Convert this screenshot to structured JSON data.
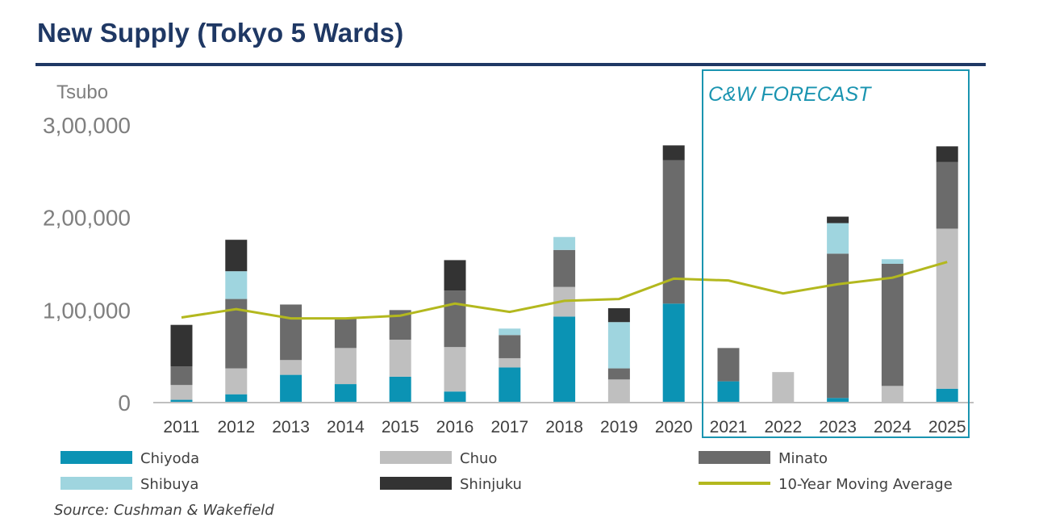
{
  "header": {
    "title": "New Supply (Tokyo 5 Wards)"
  },
  "source": "Source: Cushman & Wakefield",
  "chart_data": {
    "type": "bar",
    "stacked": true,
    "ylabel": "Tsubo",
    "ylim": [
      0,
      300000
    ],
    "yticks": [
      0,
      100000,
      200000,
      300000
    ],
    "ytick_labels": [
      "0",
      "1,00,000",
      "2,00,000",
      "3,00,000"
    ],
    "grid": false,
    "legend_position": "bottom",
    "categories": [
      "2011",
      "2012",
      "2013",
      "2014",
      "2015",
      "2016",
      "2017",
      "2018",
      "2019",
      "2020",
      "2021",
      "2022",
      "2023",
      "2024",
      "2025"
    ],
    "series": [
      {
        "name": "Chiyoda",
        "color": "#0b93b4",
        "values": [
          3000,
          9000,
          30000,
          20000,
          28000,
          12000,
          38000,
          93000,
          0,
          107000,
          23000,
          0,
          5000,
          0,
          15000
        ]
      },
      {
        "name": "Chuo",
        "color": "#bfbfbf",
        "values": [
          16000,
          28000,
          16000,
          39000,
          40000,
          48000,
          10000,
          32000,
          25000,
          0,
          0,
          33000,
          0,
          18000,
          173000
        ]
      },
      {
        "name": "Minato",
        "color": "#6b6b6b",
        "values": [
          20000,
          75000,
          60000,
          32000,
          32000,
          61000,
          25000,
          40000,
          12000,
          155000,
          36000,
          0,
          156000,
          132000,
          72000
        ]
      },
      {
        "name": "Shibuya",
        "color": "#9fd5df",
        "values": [
          0,
          30000,
          0,
          0,
          0,
          0,
          7000,
          14000,
          50000,
          0,
          0,
          0,
          33000,
          5000,
          0
        ]
      },
      {
        "name": "Shinjuku",
        "color": "#333333",
        "values": [
          45000,
          34000,
          0,
          0,
          0,
          33000,
          0,
          0,
          15000,
          16000,
          0,
          0,
          7000,
          0,
          17000
        ]
      }
    ],
    "line_series": {
      "name": "10-Year Moving Average",
      "color": "#b3b81e",
      "values": [
        92000,
        101000,
        91000,
        91000,
        94000,
        107000,
        98000,
        110000,
        112000,
        134000,
        132000,
        118000,
        128000,
        135000,
        152000
      ]
    },
    "annotation": {
      "label": "C&W FORECAST",
      "from": "2021",
      "to": "2025",
      "color": "#1a94b0"
    }
  }
}
